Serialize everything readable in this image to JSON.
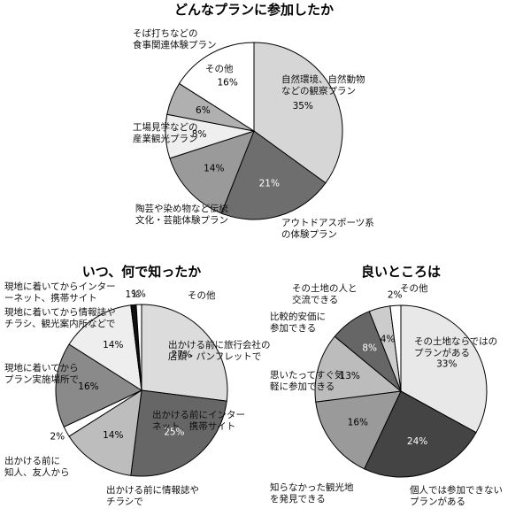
{
  "chart_data": [
    {
      "type": "pie",
      "title": "どんなプランに参加したか",
      "categories": [
        "自然環境、自然動物\nなどの観察プラン",
        "アウトドアスポーツ系\nの体験プラン",
        "陶芸や染め物など伝統\n文化・芸能体験プラン",
        "工場見学などの\n産業観光プラン",
        "そば打ちなどの\n食事関連体験プラン",
        "その他"
      ],
      "values": [
        35,
        21,
        14,
        8,
        6,
        16
      ],
      "value_labels": [
        "35%",
        "21%",
        "14%",
        "8%",
        "6%",
        "16%"
      ],
      "colors": [
        "#d6d6d6",
        "#6e6e6e",
        "#9a9a9a",
        "#efefef",
        "#b0b0b0",
        "#ffffff"
      ]
    },
    {
      "type": "pie",
      "title": "いつ、何で知ったか",
      "categories": [
        "出かける前に旅行会社の\n店頭・パンフレットで",
        "出かける前にインター\nネット、携帯サイト",
        "出かける前に情報誌や\nチラシで",
        "出かける前に\n知人、友人から",
        "現地に着いてから\nプラン実施場所で",
        "現地に着いてから情報誌や\nチラシ、観光案内所などで",
        "現地に着いてからインター\nーネット、携帯サイト",
        "その他"
      ],
      "values": [
        27,
        25,
        14,
        2,
        16,
        14,
        1,
        1
      ],
      "value_labels": [
        "27%",
        "25%",
        "14%",
        "2%",
        "16%",
        "14%",
        "1%",
        "1%"
      ],
      "colors": [
        "#dcdcdc",
        "#666666",
        "#bdbdbd",
        "#ffffff",
        "#8a8a8a",
        "#eeeeee",
        "#111111",
        "#ffffff"
      ]
    },
    {
      "type": "pie",
      "title": "良いところは",
      "categories": [
        "その土地ならではの\nプランがある",
        "個人では参加できない\nプランがある",
        "知らなかった観光地\nを発見できる",
        "思いたってすぐ気\n軽に参加できる",
        "比較的安価に\n参加できる",
        "その土地の人と\n交流できる",
        "その他"
      ],
      "values": [
        33,
        24,
        16,
        13,
        8,
        4,
        2
      ],
      "value_labels": [
        "33%",
        "24%",
        "16%",
        "13%",
        "8%",
        "4%",
        "2%"
      ],
      "colors": [
        "#e8e8e8",
        "#444444",
        "#9a9a9a",
        "#bcbcbc",
        "#666666",
        "#cccccc",
        "#ffffff"
      ]
    }
  ]
}
